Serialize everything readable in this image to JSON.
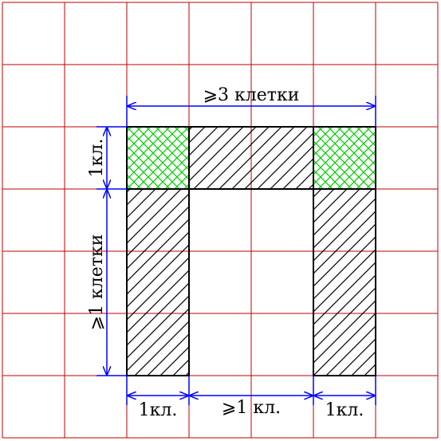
{
  "diagram": {
    "labels": {
      "top_width": "⩾3 клетки",
      "left_top_height": "1кл.",
      "left_bottom_height": "⩾1 клетки",
      "bottom_left": "1кл.",
      "bottom_middle": "⩾1 кл.",
      "bottom_right": "1кл."
    },
    "grid": {
      "columns": 7,
      "rows": 7
    },
    "colors": {
      "grid_line": "#c00000",
      "dimension": "#0000ff",
      "hatch": "#000000",
      "corner_hatch": "#00cc00"
    }
  }
}
